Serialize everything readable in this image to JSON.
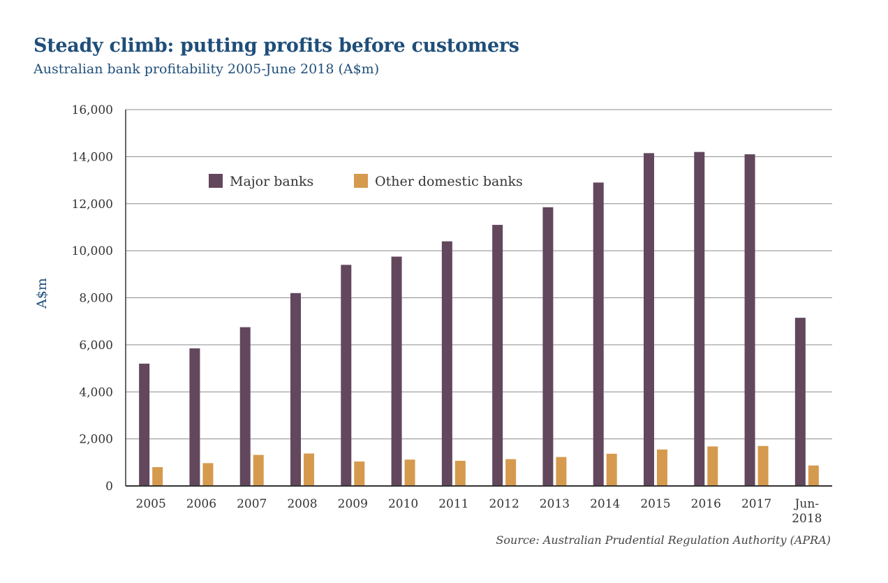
{
  "title": "Steady climb: putting profits before customers",
  "subtitle": "Australian bank profitability 2005-June 2018 (A$m)",
  "source": "Source: Australian Prudential Regulation Authority (APRA)",
  "colors": {
    "major": "#62475d",
    "other": "#d69a4e",
    "title": "#1f4e79"
  },
  "chart_data": {
    "type": "bar",
    "title": "Steady climb: putting profits before customers",
    "subtitle": "Australian bank profitability 2005-June 2018 (A$m)",
    "xlabel": "",
    "ylabel": "A$m",
    "ylim": [
      0,
      16000
    ],
    "yticks": [
      0,
      2000,
      4000,
      6000,
      8000,
      10000,
      12000,
      14000,
      16000
    ],
    "ytick_labels": [
      "0",
      "2,000",
      "4,000",
      "6,000",
      "8,000",
      "10,000",
      "12,000",
      "14,000",
      "16,000"
    ],
    "grid": true,
    "legend_position": "top-left",
    "categories": [
      "2005",
      "2006",
      "2007",
      "2008",
      "2009",
      "2010",
      "2011",
      "2012",
      "2013",
      "2014",
      "2015",
      "2016",
      "2017",
      "Jun-\n2018"
    ],
    "series": [
      {
        "name": "Major banks",
        "color": "#62475d",
        "values": [
          5200,
          5850,
          6750,
          8200,
          9400,
          9750,
          10400,
          11100,
          11850,
          12900,
          14150,
          14200,
          14100,
          7150
        ]
      },
      {
        "name": "Other domestic banks",
        "color": "#d69a4e",
        "values": [
          800,
          970,
          1320,
          1380,
          1040,
          1120,
          1070,
          1140,
          1230,
          1370,
          1550,
          1680,
          1700,
          870
        ]
      }
    ]
  }
}
